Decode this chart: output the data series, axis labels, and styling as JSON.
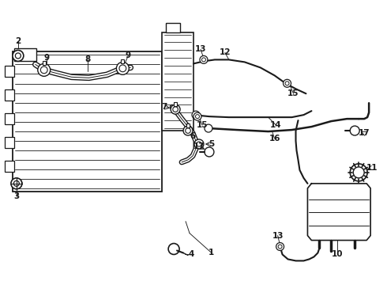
{
  "bg_color": "#ffffff",
  "lc": "#1a1a1a",
  "lw": 1.0,
  "fig_w": 4.9,
  "fig_h": 3.6,
  "dpi": 100
}
